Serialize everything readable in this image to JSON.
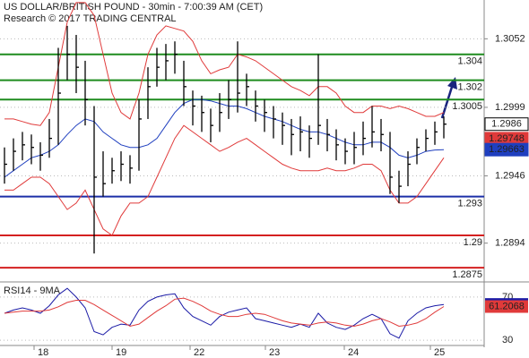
{
  "chart_data": {
    "type": "ohlc",
    "title": "US DOLLAR/BRITISH POUND - 30min - 7:00:39 AM (CET)",
    "subtitle": "Research © 2017 TRADING CENTRAL",
    "x": [
      0,
      1,
      2,
      3,
      4,
      5,
      6,
      7,
      8,
      9,
      10,
      11,
      12,
      13,
      14,
      15,
      16,
      17,
      18,
      19,
      20,
      21,
      22,
      23,
      24,
      25,
      26,
      27,
      28,
      29,
      30,
      31,
      32,
      33,
      34,
      35,
      36,
      37,
      38,
      39,
      40,
      41,
      42,
      43,
      44,
      45,
      46,
      47,
      48,
      49
    ],
    "xlim": [
      -0.5,
      53.5
    ],
    "xticks": [
      {
        "value": 3.3,
        "label": "18"
      },
      {
        "value": 12,
        "label": "19"
      },
      {
        "value": 20.7,
        "label": "22"
      },
      {
        "value": 29.1,
        "label": "23"
      },
      {
        "value": 37.9,
        "label": "24"
      },
      {
        "value": 47.5,
        "label": "25"
      }
    ],
    "ylim": [
      1.2864,
      1.3082
    ],
    "yticks": [
      1.3052,
      1.2999,
      1.2946,
      1.2894
    ],
    "grid": true,
    "bar_color": "#000000",
    "high": [
      1.2968,
      1.2975,
      1.298,
      1.2978,
      1.2972,
      1.299,
      1.3045,
      1.3062,
      1.3055,
      1.3035,
      1.3,
      1.2965,
      1.296,
      1.2965,
      1.2962,
      1.3005,
      1.303,
      1.3045,
      1.3048,
      1.305,
      1.3035,
      1.3012,
      1.3008,
      1.2998,
      1.301,
      1.302,
      1.305,
      1.3025,
      1.3012,
      1.3005,
      1.3,
      1.2995,
      1.299,
      1.2992,
      1.2985,
      1.304,
      1.299,
      1.2982,
      1.2975,
      1.298,
      1.2988,
      1.3,
      1.299,
      1.298,
      1.295,
      1.2965,
      1.2975,
      1.2982,
      1.2988,
      1.2992
    ],
    "low": [
      1.294,
      1.295,
      1.2958,
      1.2955,
      1.295,
      1.296,
      1.297,
      1.302,
      1.301,
      1.2985,
      1.2886,
      1.293,
      1.294,
      1.2942,
      1.294,
      1.295,
      1.299,
      1.3015,
      1.302,
      1.3025,
      1.3,
      1.2985,
      1.298,
      1.2972,
      1.298,
      1.299,
      1.2995,
      1.3,
      1.2988,
      1.298,
      1.2975,
      1.297,
      1.2962,
      1.2965,
      1.296,
      1.297,
      1.2965,
      1.2958,
      1.2955,
      1.2955,
      1.2962,
      1.2968,
      1.2965,
      1.2932,
      1.2925,
      1.2938,
      1.2955,
      1.2965,
      1.297,
      1.2975
    ],
    "close": [
      1.2955,
      1.2965,
      1.297,
      1.2968,
      1.2962,
      1.2975,
      1.301,
      1.304,
      1.303,
      1.3005,
      1.2945,
      1.294,
      1.295,
      1.2955,
      1.2952,
      1.299,
      1.3015,
      1.303,
      1.3035,
      1.304,
      1.3015,
      1.3,
      1.2995,
      1.2985,
      1.2995,
      1.3005,
      1.301,
      1.3015,
      1.3,
      1.2995,
      1.299,
      1.2985,
      1.2978,
      1.298,
      1.2975,
      1.2985,
      1.2978,
      1.297,
      1.2965,
      1.2968,
      1.2975,
      1.298,
      1.2978,
      1.2945,
      1.2938,
      1.2955,
      1.2968,
      1.2975,
      1.298,
      1.2986
    ],
    "series": [
      {
        "color": "#e03a3a",
        "values": [
          1.299,
          1.299,
          1.2988,
          1.2986,
          1.2985,
          1.2995,
          1.303,
          1.3065,
          1.308,
          1.308,
          1.307,
          1.304,
          1.301,
          1.2995,
          1.299,
          1.301,
          1.304,
          1.3055,
          1.3062,
          1.306,
          1.3058,
          1.305,
          1.3035,
          1.3025,
          1.3028,
          1.303,
          1.304,
          1.3038,
          1.3035,
          1.303,
          1.3025,
          1.302,
          1.3015,
          1.3012,
          1.3008,
          1.3015,
          1.3015,
          1.301,
          1.3,
          1.2995,
          1.2995,
          1.3,
          1.3,
          1.2998,
          1.3,
          1.2998,
          1.2995,
          1.2992,
          1.2992,
          1.2995
        ]
      },
      {
        "color": "#e03a3a",
        "values": [
          1.2935,
          1.2935,
          1.294,
          1.2945,
          1.2945,
          1.294,
          1.293,
          1.292,
          1.2925,
          1.2935,
          1.292,
          1.2905,
          1.29,
          1.2915,
          1.2925,
          1.2925,
          1.293,
          1.2945,
          1.296,
          1.2975,
          1.2985,
          1.298,
          1.2975,
          1.297,
          1.2965,
          1.2968,
          1.2972,
          1.2975,
          1.297,
          1.2965,
          1.296,
          1.2955,
          1.2952,
          1.295,
          1.295,
          1.295,
          1.2952,
          1.295,
          1.295,
          1.2952,
          1.2955,
          1.2955,
          1.295,
          1.2935,
          1.2925,
          1.2925,
          1.293,
          1.294,
          1.295,
          1.296
        ]
      },
      {
        "color": "#1f3fbf",
        "values": [
          1.2945,
          1.295,
          1.2955,
          1.296,
          1.2962,
          1.2965,
          1.297,
          1.2978,
          1.2985,
          1.299,
          1.2988,
          1.298,
          1.2975,
          1.297,
          1.2968,
          1.2968,
          1.297,
          1.2975,
          1.2985,
          1.2995,
          1.3002,
          1.3005,
          1.3005,
          1.3004,
          1.3002,
          1.3,
          1.3,
          1.2998,
          1.2995,
          1.2992,
          1.299,
          1.2988,
          1.2985,
          1.2982,
          1.298,
          1.298,
          1.2978,
          1.2975,
          1.2972,
          1.297,
          1.297,
          1.2972,
          1.2972,
          1.2968,
          1.2962,
          1.296,
          1.2962,
          1.2965,
          1.2966,
          1.29663
        ]
      }
    ],
    "markers": [
      {
        "value": 1.29748,
        "color": "#e03a3a"
      }
    ],
    "levels": [
      {
        "value": 1.304,
        "color": "#1e8c1e"
      },
      {
        "value": 1.302,
        "color": "#1e8c1e"
      },
      {
        "value": 1.3005,
        "color": "#1e8c1e"
      },
      {
        "value": 1.293,
        "color": "#1c2fa8"
      },
      {
        "value": 1.29,
        "color": "#d42020"
      },
      {
        "value": 1.2875,
        "color": "#d42020"
      }
    ],
    "rsi": {
      "type": "line",
      "label": "RSI14 - 9MA",
      "ylim": [
        26,
        84
      ],
      "yticks": [
        70,
        30
      ],
      "series": [
        {
          "color": "#1a1aa6",
          "values": [
            55,
            58,
            60,
            58,
            55,
            62,
            72,
            78,
            70,
            60,
            38,
            35,
            42,
            45,
            44,
            58,
            66,
            70,
            72,
            73,
            60,
            52,
            48,
            44,
            52,
            56,
            58,
            60,
            50,
            48,
            46,
            44,
            42,
            45,
            42,
            55,
            46,
            42,
            40,
            44,
            50,
            54,
            50,
            36,
            32,
            48,
            55,
            60,
            62,
            63.1581
          ]
        },
        {
          "color": "#e03a3a",
          "values": [
            55,
            56,
            57,
            57,
            57,
            58,
            61,
            65,
            67,
            67,
            63,
            58,
            53,
            48,
            43,
            45,
            51,
            57,
            62,
            68,
            69,
            66,
            62,
            57,
            54,
            52,
            52,
            54,
            55,
            54,
            51,
            48,
            46,
            45,
            44,
            46,
            47,
            46,
            44,
            43,
            45,
            48,
            50,
            47,
            43,
            44,
            46,
            50,
            56,
            61.2068
          ]
        }
      ]
    }
  }
}
